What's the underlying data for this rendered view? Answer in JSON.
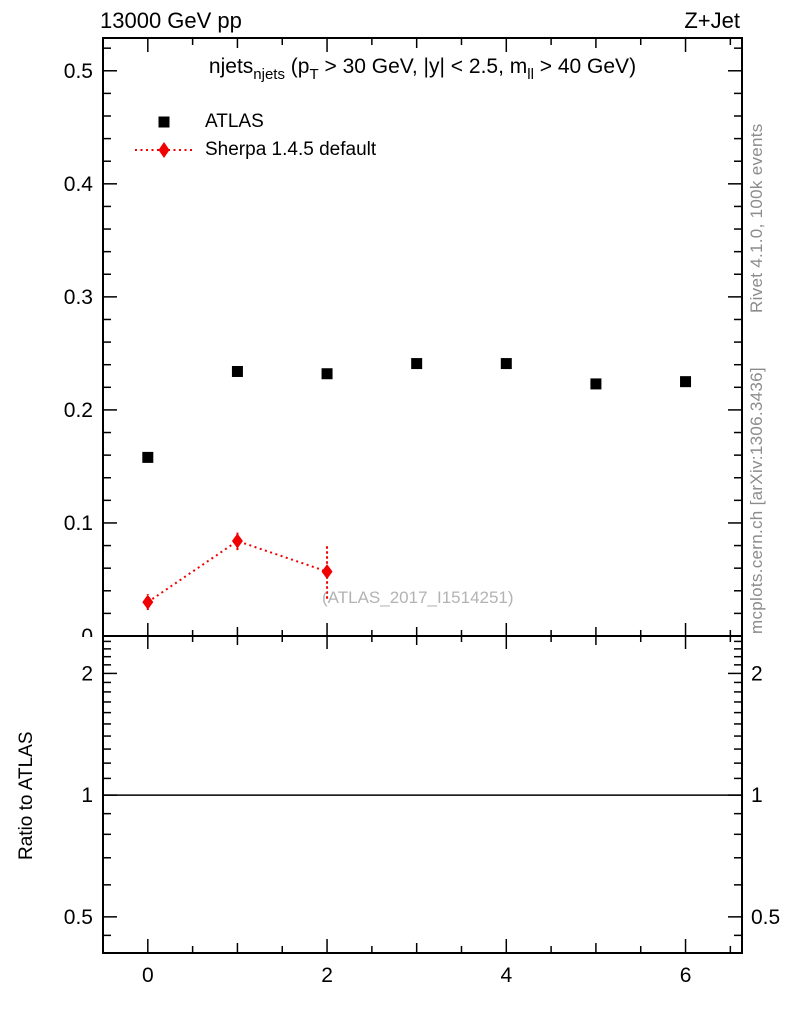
{
  "header": {
    "left": "13000 GeV pp",
    "right": "Z+Jet"
  },
  "title_segments": [
    {
      "t": "njets"
    },
    {
      "t": "njets",
      "sub": true
    },
    {
      "t": " (p"
    },
    {
      "t": "T",
      "sub": true
    },
    {
      "t": " > 30 GeV, |y| < 2.5, m"
    },
    {
      "t": "ll",
      "sub": true
    },
    {
      "t": " > 40 GeV)"
    }
  ],
  "legend": [
    {
      "label": "ATLAS",
      "marker": "square",
      "color": "#000000",
      "line": "none"
    },
    {
      "label": "Sherpa 1.4.5 default",
      "marker": "diamond",
      "color": "#f00000",
      "line": "dotted"
    }
  ],
  "watermark": "(ATLAS_2017_I1514251)",
  "side_notes": {
    "top": "Rivet 4.1.0,  100k events",
    "bottom": "mcplots.cern.ch [arXiv:1306.3436]"
  },
  "ratio_label": "Ratio to ATLAS",
  "colors": {
    "data": "#000000",
    "mc": "#f00000",
    "frame": "#000000",
    "note": "#8c8c8c",
    "watermark": "#b3b3b3"
  },
  "chart_data": {
    "type": "scatter",
    "title": "njets_njets (pT > 30 GeV, |y| < 2.5, mll > 40 GeV)",
    "xlabel": "",
    "ylabel": "",
    "ratio_ylabel": "Ratio to ATLAS",
    "xlim": [
      -0.5,
      6.63
    ],
    "main_ylim": [
      0,
      0.529
    ],
    "ratio_ylim": [
      0.407,
      2.447
    ],
    "ratio_scale": "log2",
    "grid": false,
    "legend_position": "top-left",
    "x_major_tick_labels": [
      0,
      2,
      4,
      6
    ],
    "x_minor_step": 0.5,
    "y_major_tick_labels": [
      0,
      0.1,
      0.2,
      0.3,
      0.4,
      0.5
    ],
    "y_minor_step": 0.02,
    "ratio_tick_labels": [
      0.5,
      1,
      2
    ],
    "ratio_minor_ticks": [
      0.45,
      0.6,
      0.7,
      0.8,
      0.9,
      1.1,
      1.2,
      1.3,
      1.4,
      1.5,
      1.6,
      1.7,
      1.8,
      1.9,
      2.1,
      2.2,
      2.3,
      2.4
    ],
    "ratio_reference_line": 1,
    "series": [
      {
        "name": "ATLAS",
        "marker": "square",
        "color": "#000000",
        "connect": false,
        "x": [
          0,
          1,
          2,
          3,
          4,
          5,
          6
        ],
        "y": [
          0.158,
          0.234,
          0.232,
          0.241,
          0.241,
          0.223,
          0.225
        ]
      },
      {
        "name": "Sherpa 1.4.5 default",
        "marker": "diamond",
        "color": "#f00000",
        "connect": true,
        "linestyle": "dotted",
        "x": [
          0,
          1,
          2
        ],
        "y": [
          0.03,
          0.084,
          0.057
        ],
        "yerr": [
          0.007,
          0.008,
          0.024
        ]
      }
    ]
  }
}
